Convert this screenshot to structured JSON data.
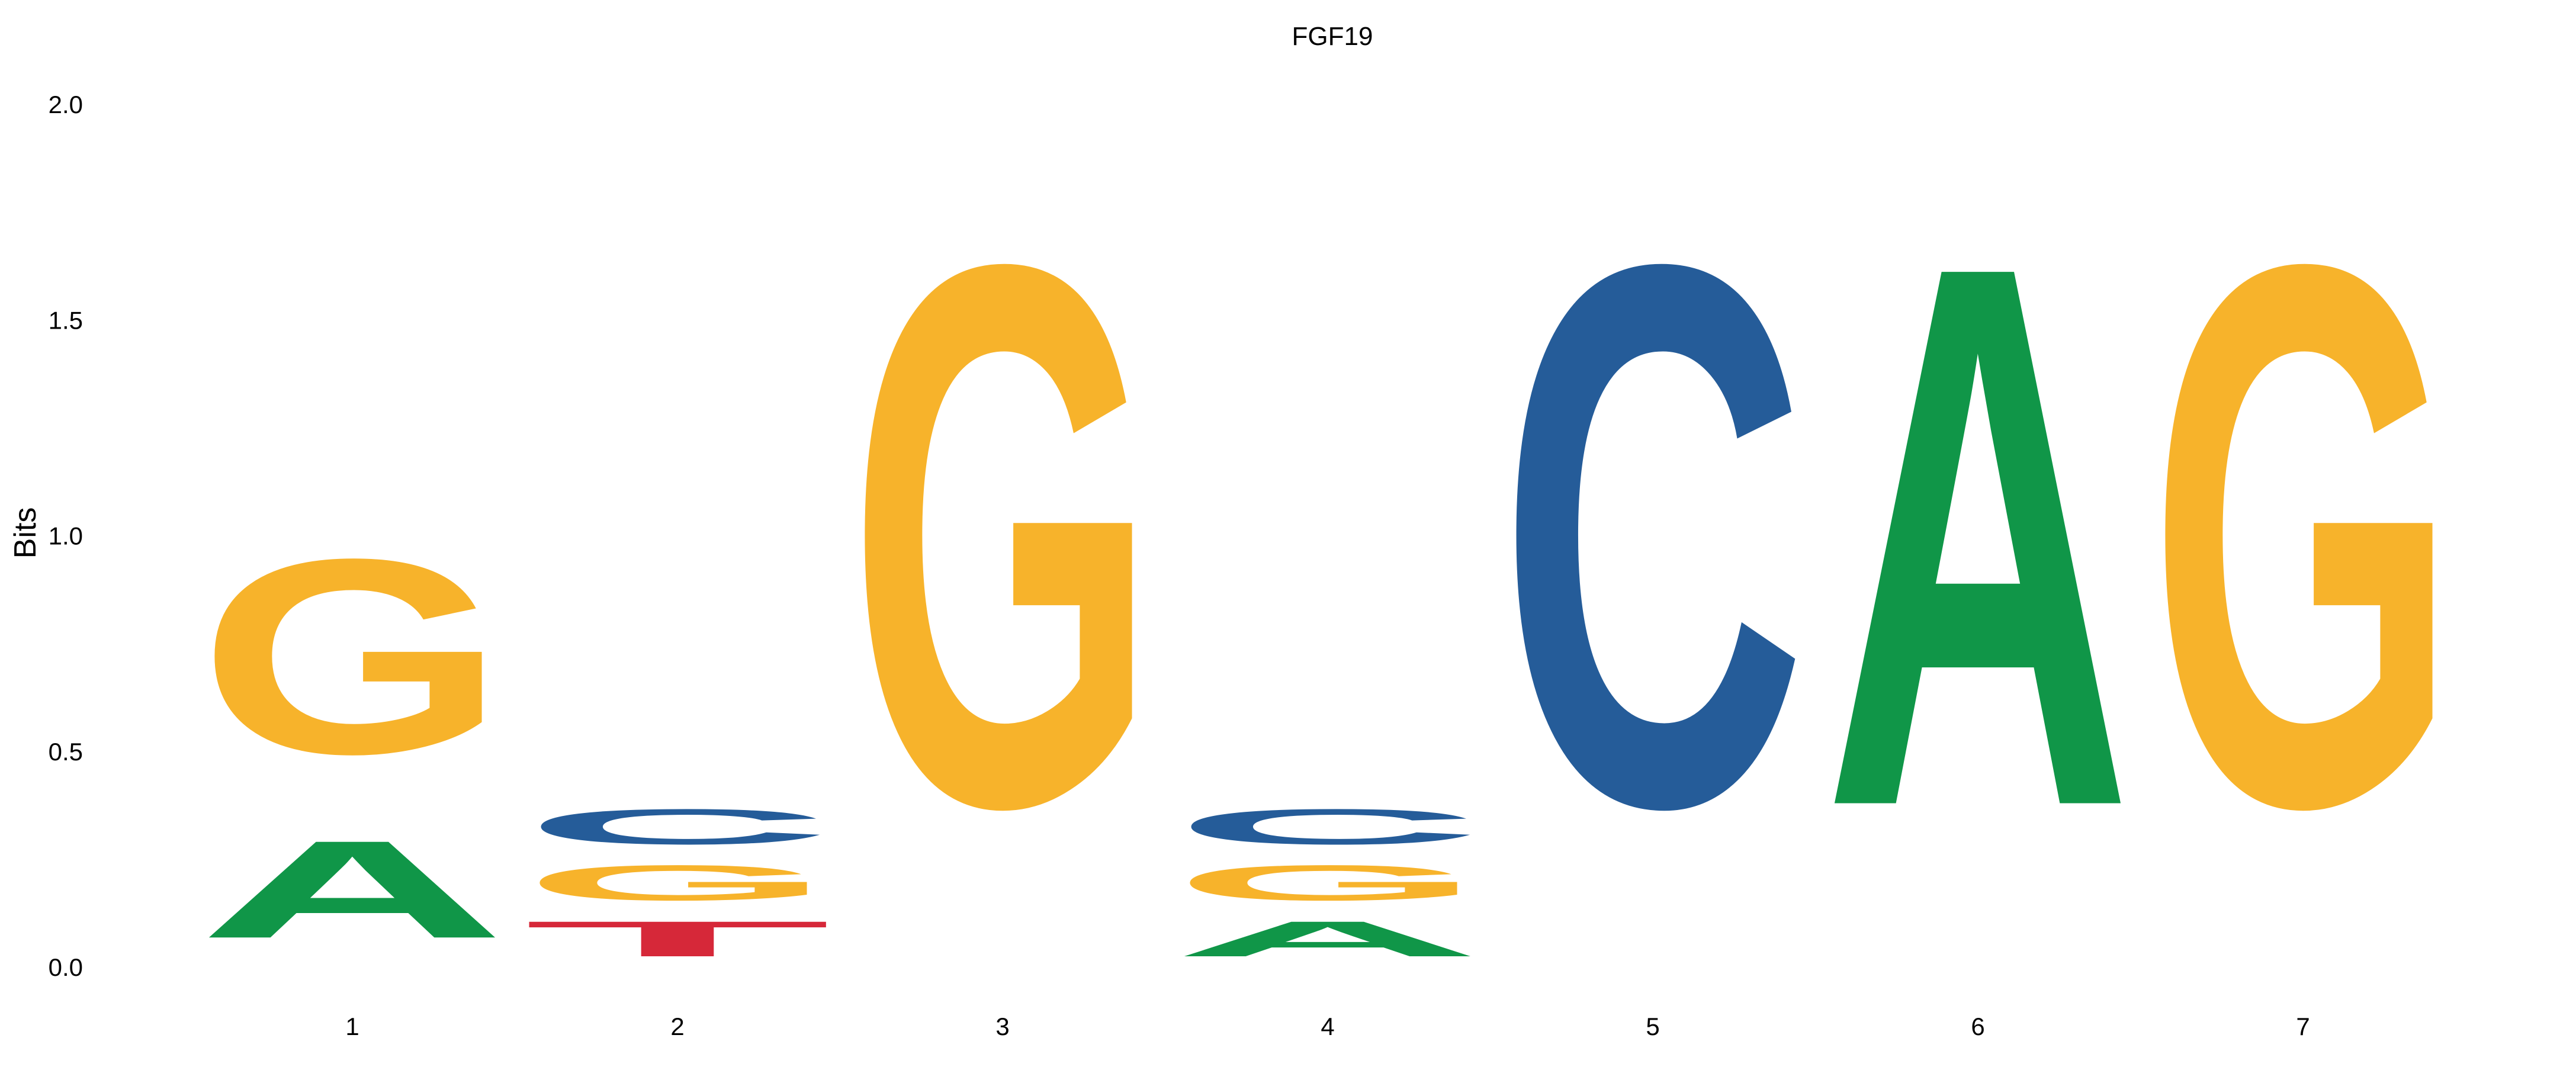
{
  "chart_data": {
    "type": "sequence-logo",
    "title": "FGF19",
    "xlabel": "",
    "ylabel": "Bits",
    "ylim": [
      0,
      2
    ],
    "yticks": [
      "0.0",
      "0.5",
      "1.0",
      "1.5",
      "2.0"
    ],
    "ytick_values": [
      0,
      0.5,
      1.0,
      1.5,
      2.0
    ],
    "grid": false,
    "legend": "none",
    "colors": {
      "A": "#109648",
      "C": "#255C99",
      "G": "#F7B32B",
      "T": "#D62839"
    },
    "positions": [
      {
        "label": "1",
        "letters": [
          {
            "base": "A",
            "bits": 0.36
          },
          {
            "base": "G",
            "bits": 0.72
          }
        ]
      },
      {
        "label": "2",
        "letters": [
          {
            "base": "T",
            "bits": 0.13
          },
          {
            "base": "G",
            "bits": 0.13
          },
          {
            "base": "C",
            "bits": 0.13
          }
        ]
      },
      {
        "label": "3",
        "letters": [
          {
            "base": "G",
            "bits": 2.0
          }
        ]
      },
      {
        "label": "4",
        "letters": [
          {
            "base": "A",
            "bits": 0.13
          },
          {
            "base": "G",
            "bits": 0.13
          },
          {
            "base": "C",
            "bits": 0.13
          }
        ]
      },
      {
        "label": "5",
        "letters": [
          {
            "base": "C",
            "bits": 2.0
          }
        ]
      },
      {
        "label": "6",
        "letters": [
          {
            "base": "A",
            "bits": 2.0
          }
        ]
      },
      {
        "label": "7",
        "letters": [
          {
            "base": "G",
            "bits": 2.0
          }
        ]
      }
    ]
  }
}
